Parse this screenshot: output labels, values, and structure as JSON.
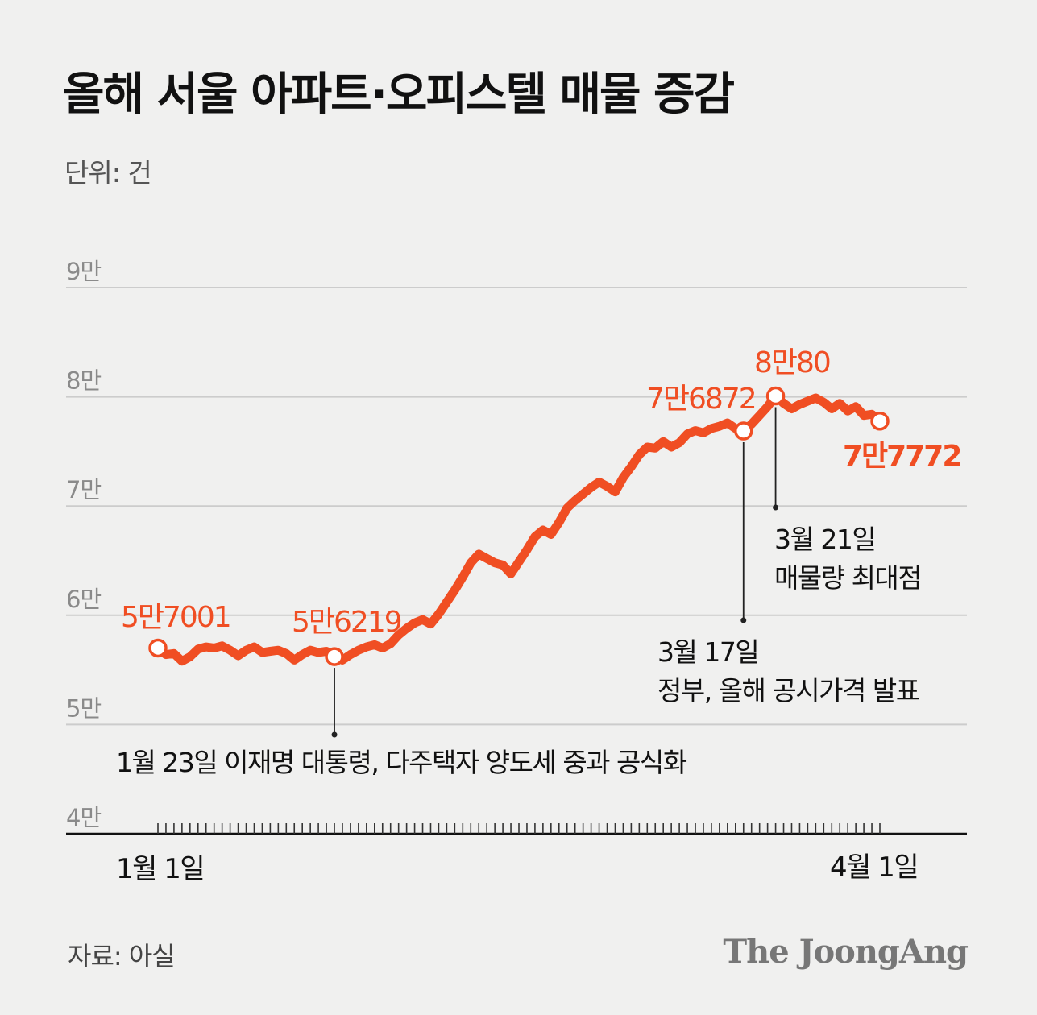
{
  "title": "올해 서울 아파트·오피스텔 매물 증감",
  "unit": "단위: 건",
  "source": "자료: 아실",
  "logo": "The JoongAng",
  "colors": {
    "line": "#f04e23",
    "text": "#111111",
    "grid": "#cccccc",
    "axis_label": "#8a8a8a"
  },
  "chart_data": {
    "type": "line",
    "title": "올해 서울 아파트·오피스텔 매물 증감",
    "ylabel": "단위: 건",
    "ylim": [
      40000,
      90000
    ],
    "yticks": [
      40000,
      50000,
      60000,
      70000,
      80000,
      90000
    ],
    "ytick_labels": [
      "4만",
      "5만",
      "6만",
      "7만",
      "8만",
      "9만"
    ],
    "x_start": "1월 1일",
    "x_end": "4월 1일",
    "xtick_labels": [
      "1월 1일",
      "4월 1일"
    ],
    "grid": true,
    "series": [
      {
        "values": [
          57001,
          56400,
          56500,
          55800,
          56200,
          56900,
          57100,
          57000,
          57200,
          56800,
          56300,
          56800,
          57100,
          56600,
          56700,
          56800,
          56500,
          55900,
          56400,
          56800,
          56600,
          56700,
          56219,
          55900,
          56400,
          56800,
          57100,
          57300,
          57000,
          57400,
          58200,
          58800,
          59300,
          59600,
          59200,
          60100,
          61200,
          62300,
          63500,
          64800,
          65600,
          65200,
          64800,
          64600,
          63800,
          64900,
          66000,
          67200,
          67800,
          67400,
          68500,
          69800,
          70500,
          71100,
          71700,
          72200,
          71800,
          71300,
          72600,
          73600,
          74700,
          75400,
          75300,
          75900,
          75400,
          75800,
          76600,
          76900,
          76700,
          77100,
          77300,
          77600,
          77100,
          76872,
          77500,
          78300,
          79100,
          80080,
          79400,
          78900,
          79300,
          79600,
          79900,
          79500,
          78900,
          79400,
          78700,
          79100,
          78300,
          78400,
          77772
        ]
      }
    ],
    "annotations": [
      {
        "label": "5만7001",
        "x_index": 0
      },
      {
        "label": "5만6219",
        "x_index": 22
      },
      {
        "label": "7만6872",
        "x_index": 73
      },
      {
        "label": "8만80",
        "x_index": 77
      },
      {
        "label": "7만7772",
        "x_index": 90
      }
    ],
    "events": [
      {
        "x_index": 22,
        "lines": [
          "1월 23일 이재명 대통령, 다주택자 양도세 중과 공식화"
        ]
      },
      {
        "x_index": 73,
        "lines": [
          "3월 17일",
          "정부, 올해 공시가격 발표"
        ]
      },
      {
        "x_index": 77,
        "lines": [
          "3월 21일",
          "매물량 최대점"
        ]
      }
    ]
  }
}
